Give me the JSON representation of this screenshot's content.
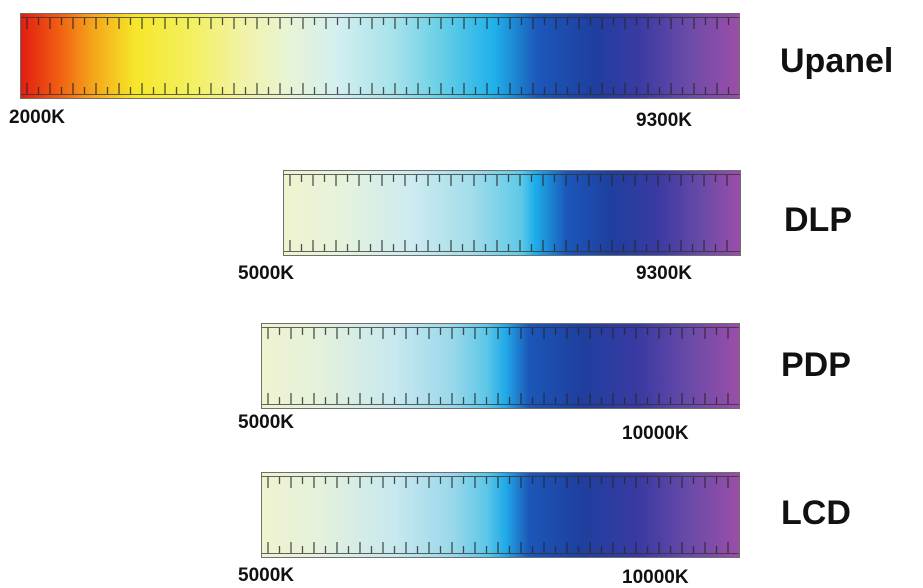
{
  "bands": [
    {
      "label": "Upanel",
      "start_label": "2000K",
      "end_label": "9300K",
      "color_stops": [
        "#e31d12",
        "#f6e72a",
        "#e8f4d4",
        "#63cde7",
        "#1b57b9",
        "#1f3f9f",
        "#9b4ea8"
      ]
    },
    {
      "label": "DLP",
      "start_label": "5000K",
      "end_label": "9300K",
      "color_stops": [
        "#f0f3cf",
        "#cdebf0",
        "#1eaeea",
        "#1b57b9",
        "#9b4ea8"
      ]
    },
    {
      "label": "PDP",
      "start_label": "5000K",
      "end_label": "10000K",
      "color_stops": [
        "#f0f3cf",
        "#c7e8ef",
        "#21aae8",
        "#1b57b9",
        "#9b4ea8"
      ]
    },
    {
      "label": "LCD",
      "start_label": "5000K",
      "end_label": "10000K",
      "color_stops": [
        "#f0f3cf",
        "#c7e8ef",
        "#21aae8",
        "#1b57b9",
        "#9b4ea8"
      ]
    }
  ]
}
